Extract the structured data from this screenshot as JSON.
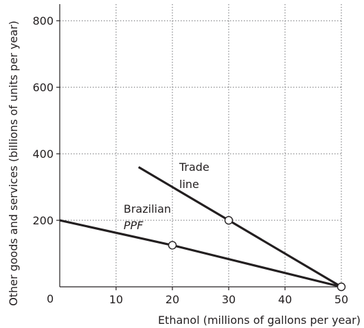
{
  "chart_data": {
    "type": "line",
    "xlabel": "Ethanol (millions of gallons per year)",
    "ylabel": "Other goods and services (billions of units per year)",
    "xlim": [
      0,
      50
    ],
    "ylim": [
      0,
      850
    ],
    "x_ticks": [
      0,
      10,
      20,
      30,
      40,
      50
    ],
    "y_ticks": [
      0,
      200,
      400,
      600,
      800
    ],
    "x_tick_labels": [
      "0",
      "10",
      "20",
      "30",
      "40",
      "50"
    ],
    "y_tick_labels": [
      "",
      "200",
      "400",
      "600",
      "800"
    ],
    "origin_label": "0",
    "grid": "dotted",
    "series": [
      {
        "name": "Brazilian PPF",
        "label_lines": [
          "Brazilian",
          "PPF"
        ],
        "points": [
          [
            0,
            200
          ],
          [
            20,
            125
          ],
          [
            50,
            0
          ]
        ],
        "markers": [
          [
            20,
            125
          ],
          [
            50,
            0
          ]
        ],
        "color": "#231f20"
      },
      {
        "name": "Trade line",
        "label_lines": [
          "Trade",
          "line"
        ],
        "points": [
          [
            14,
            360
          ],
          [
            30,
            200
          ],
          [
            50,
            0
          ]
        ],
        "markers": [
          [
            30,
            200
          ],
          [
            50,
            0
          ]
        ],
        "color": "#231f20"
      }
    ],
    "grid_color": "#6d6e71",
    "marker_fill": "#ffffff"
  }
}
